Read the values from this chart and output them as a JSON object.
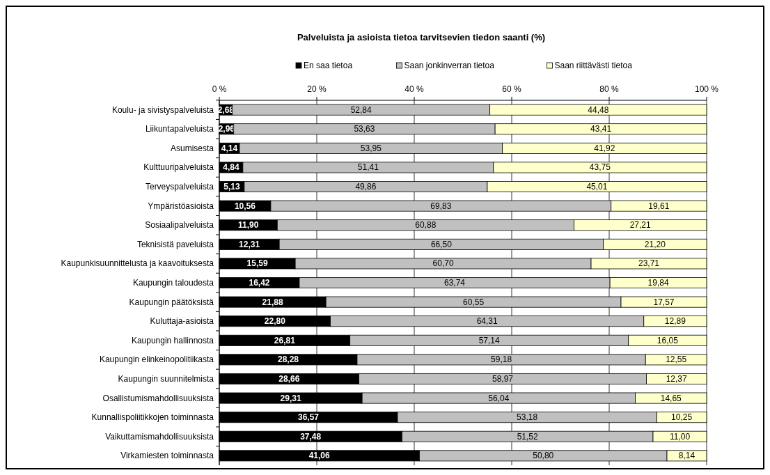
{
  "chart_data": {
    "type": "bar",
    "orientation": "horizontal",
    "stacked": true,
    "title": "Palveluista ja asioista tietoa tarvitsevien tiedon saanti (%)",
    "categories": [
      "Koulu- ja sivistyspalveluista",
      "Liikuntapalveluista",
      "Asumisesta",
      "Kulttuuripalveluista",
      "Terveyspalveluista",
      "Ympäristöasioista",
      "Sosiaalipalveluista",
      "Teknisistä paveluista",
      "Kaupunkisuunnittelusta ja kaavoituksesta",
      "Kaupungin taloudesta",
      "Kaupungin päätöksistä",
      "Kuluttaja-asioista",
      "Kaupungin hallinnosta",
      "Kaupungin elinkeinopolitiikasta",
      "Kaupungin suunnitelmista",
      "Osallistumismahdollisuuksista",
      "Kunnallispoliitikkojen toiminnasta",
      "Vaikuttamismahdollisuuksista",
      "Virkamiesten toiminnasta"
    ],
    "series": [
      {
        "name": "En saa tietoa",
        "color": "#000000",
        "values": [
          2.68,
          2.96,
          4.14,
          4.84,
          5.13,
          10.56,
          11.9,
          12.31,
          15.59,
          16.42,
          21.88,
          22.8,
          26.81,
          28.28,
          28.66,
          29.31,
          36.57,
          37.48,
          41.06
        ],
        "value_labels": [
          "2,68",
          "2,96",
          "4,14",
          "4,84",
          "5,13",
          "10,56",
          "11,90",
          "12,31",
          "15,59",
          "16,42",
          "21,88",
          "22,80",
          "26,81",
          "28,28",
          "28,66",
          "29,31",
          "36,57",
          "37,48",
          "41,06"
        ]
      },
      {
        "name": "Saan jonkinverran tietoa",
        "color": "#c0c0c0",
        "values": [
          52.84,
          53.63,
          53.95,
          51.41,
          49.86,
          69.83,
          60.88,
          66.5,
          60.7,
          63.74,
          60.55,
          64.31,
          57.14,
          59.18,
          58.97,
          56.04,
          53.18,
          51.52,
          50.8
        ],
        "value_labels": [
          "52,84",
          "53,63",
          "53,95",
          "51,41",
          "49,86",
          "69,83",
          "60,88",
          "66,50",
          "60,70",
          "63,74",
          "60,55",
          "64,31",
          "57,14",
          "59,18",
          "58,97",
          "56,04",
          "53,18",
          "51,52",
          "50,80"
        ]
      },
      {
        "name": "Saan riittävästi tietoa",
        "color": "#ffffcc",
        "values": [
          44.48,
          43.41,
          41.92,
          43.75,
          45.01,
          19.61,
          27.21,
          21.2,
          23.71,
          19.84,
          17.57,
          12.89,
          16.05,
          12.55,
          12.37,
          14.65,
          10.25,
          11.0,
          8.14
        ],
        "value_labels": [
          "44,48",
          "43,41",
          "41,92",
          "43,75",
          "45,01",
          "19,61",
          "27,21",
          "21,20",
          "23,71",
          "19,84",
          "17,57",
          "12,89",
          "16,05",
          "12,55",
          "12,37",
          "14,65",
          "10,25",
          "11,00",
          "8,14"
        ]
      }
    ],
    "xlim": [
      0,
      100
    ],
    "xticks": [
      {
        "value": 0,
        "label": "0 %"
      },
      {
        "value": 20,
        "label": "20 %"
      },
      {
        "value": 40,
        "label": "40 %"
      },
      {
        "value": 60,
        "label": "60 %"
      },
      {
        "value": 80,
        "label": "80 %"
      },
      {
        "value": 100,
        "label": "100 %"
      }
    ],
    "grid": "x",
    "legend": "top"
  }
}
